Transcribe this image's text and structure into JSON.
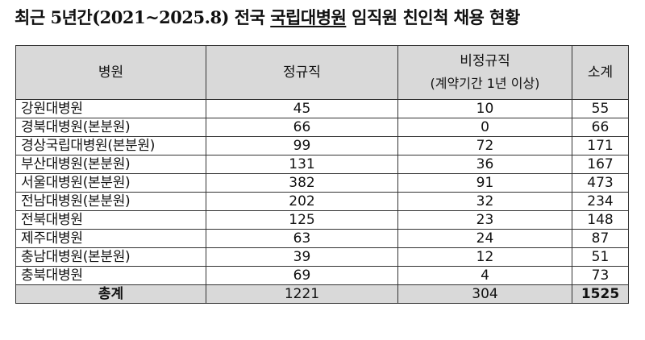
{
  "title": {
    "prefix": "최근 5년간(2021~2025.8) 전국 ",
    "underlined": "국립대병원",
    "suffix": " 임직원 친인척 채용 현황"
  },
  "table": {
    "headers": {
      "hospital": "병원",
      "regular": "정규직",
      "nonregular": "비정규직",
      "nonregular_sub": "(계약기간 1년 이상)",
      "subtotal": "소계"
    },
    "rows": [
      {
        "hospital": "강원대병원",
        "regular": "45",
        "nonregular": "10",
        "subtotal": "55"
      },
      {
        "hospital": "경북대병원(본분원)",
        "regular": "66",
        "nonregular": "0",
        "subtotal": "66"
      },
      {
        "hospital": "경상국립대병원(본분원)",
        "regular": "99",
        "nonregular": "72",
        "subtotal": "171"
      },
      {
        "hospital": "부산대병원(본분원)",
        "regular": "131",
        "nonregular": "36",
        "subtotal": "167"
      },
      {
        "hospital": "서울대병원(본분원)",
        "regular": "382",
        "nonregular": "91",
        "subtotal": "473"
      },
      {
        "hospital": "전남대병원(본분원)",
        "regular": "202",
        "nonregular": "32",
        "subtotal": "234"
      },
      {
        "hospital": "전북대병원",
        "regular": "125",
        "nonregular": "23",
        "subtotal": "148"
      },
      {
        "hospital": "제주대병원",
        "regular": "63",
        "nonregular": "24",
        "subtotal": "87"
      },
      {
        "hospital": "충남대병원(본분원)",
        "regular": "39",
        "nonregular": "12",
        "subtotal": "51"
      },
      {
        "hospital": "충북대병원",
        "regular": "69",
        "nonregular": "4",
        "subtotal": "73"
      }
    ],
    "total": {
      "label": "총계",
      "regular": "1221",
      "nonregular": "304",
      "subtotal": "1525"
    }
  }
}
